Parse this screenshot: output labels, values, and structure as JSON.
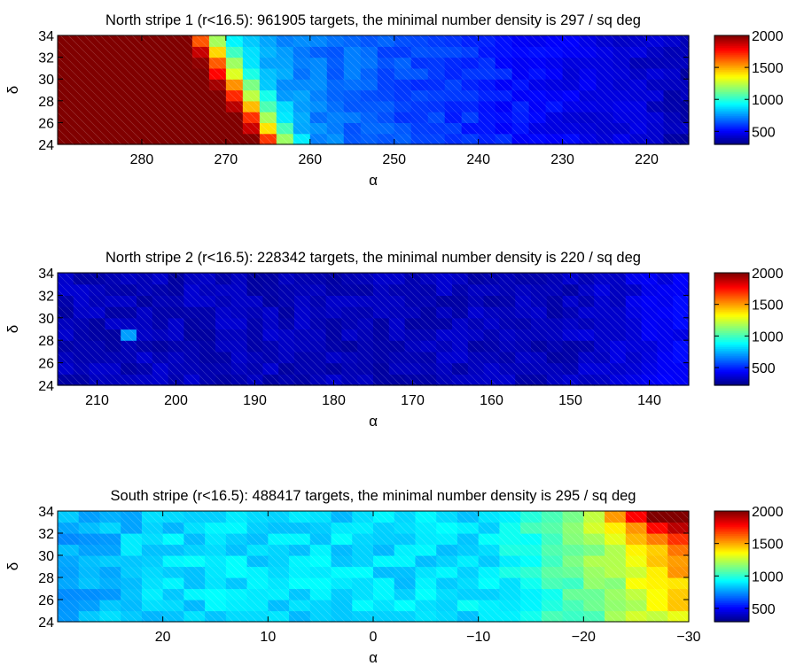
{
  "chart_data": [
    {
      "type": "heatmap",
      "title": "North stripe 1 (r<16.5): 961905 targets, the minimal number density is 297 / sq deg",
      "xlabel": "α",
      "ylabel": "δ",
      "xlim": [
        290,
        215
      ],
      "ylim": [
        24,
        34
      ],
      "xticks": [
        280,
        270,
        260,
        250,
        240,
        230,
        220
      ],
      "xtick_labels": [
        "280",
        "270",
        "260",
        "250",
        "240",
        "230",
        "220"
      ],
      "yticks": [
        24,
        26,
        28,
        30,
        32,
        34
      ],
      "ytick_labels": [
        "24",
        "26",
        "28",
        "30",
        "32",
        "34"
      ],
      "grid": [
        2,
        1
      ],
      "colorbar": {
        "range": [
          297,
          2000
        ],
        "ticks": [
          500,
          1000,
          1500,
          2000
        ],
        "tick_labels": [
          "500",
          "1000",
          "1500",
          "2000"
        ]
      },
      "field": {
        "kind": "stripe1",
        "description_of_trend": "saturated (~2000) for alpha > 272, sharp gradient 272-262, then ~800-400 decreasing toward alpha 215"
      }
    },
    {
      "type": "heatmap",
      "title": "North stripe 2 (r<16.5): 228342 targets, the minimal number density is 220 / sq deg",
      "xlabel": "α",
      "ylabel": "δ",
      "xlim": [
        215,
        135
      ],
      "ylim": [
        24,
        34
      ],
      "xticks": [
        210,
        200,
        190,
        180,
        170,
        160,
        150,
        140
      ],
      "xtick_labels": [
        "210",
        "200",
        "190",
        "180",
        "170",
        "160",
        "150",
        "140"
      ],
      "yticks": [
        24,
        26,
        28,
        30,
        32,
        34
      ],
      "ytick_labels": [
        "24",
        "26",
        "28",
        "30",
        "32",
        "34"
      ],
      "grid": [
        2,
        1
      ],
      "colorbar": {
        "range": [
          220,
          2000
        ],
        "ticks": [
          500,
          1000,
          1500,
          2000
        ],
        "tick_labels": [
          "500",
          "1000",
          "1500",
          "2000"
        ]
      },
      "field": {
        "kind": "stripe2",
        "description_of_trend": "nearly uniform low density ~250-420, one brighter cell near alpha 205, delta 28.5"
      }
    },
    {
      "type": "heatmap",
      "title": "South stripe (r<16.5): 488417 targets, the minimal number density is 295 / sq deg",
      "xlabel": "α",
      "ylabel": "δ",
      "xlim": [
        30,
        -30
      ],
      "ylim": [
        24,
        34
      ],
      "xticks": [
        20,
        10,
        0,
        -10,
        -20,
        -30
      ],
      "xtick_labels": [
        "20",
        "10",
        "0",
        "−10",
        "−20",
        "−30"
      ],
      "yticks": [
        24,
        26,
        28,
        30,
        32,
        34
      ],
      "ytick_labels": [
        "24",
        "26",
        "28",
        "30",
        "32",
        "34"
      ],
      "grid": [
        2,
        1
      ],
      "colorbar": {
        "range": [
          295,
          2000
        ],
        "ticks": [
          500,
          1000,
          1500,
          2000
        ],
        "tick_labels": [
          "500",
          "1000",
          "1500",
          "2000"
        ]
      },
      "field": {
        "kind": "south",
        "description_of_trend": "~800-950 for alpha > 0, rising to ~1200-1500 near alpha -20, up to ~2000 at alpha -30, delta 34"
      }
    }
  ]
}
